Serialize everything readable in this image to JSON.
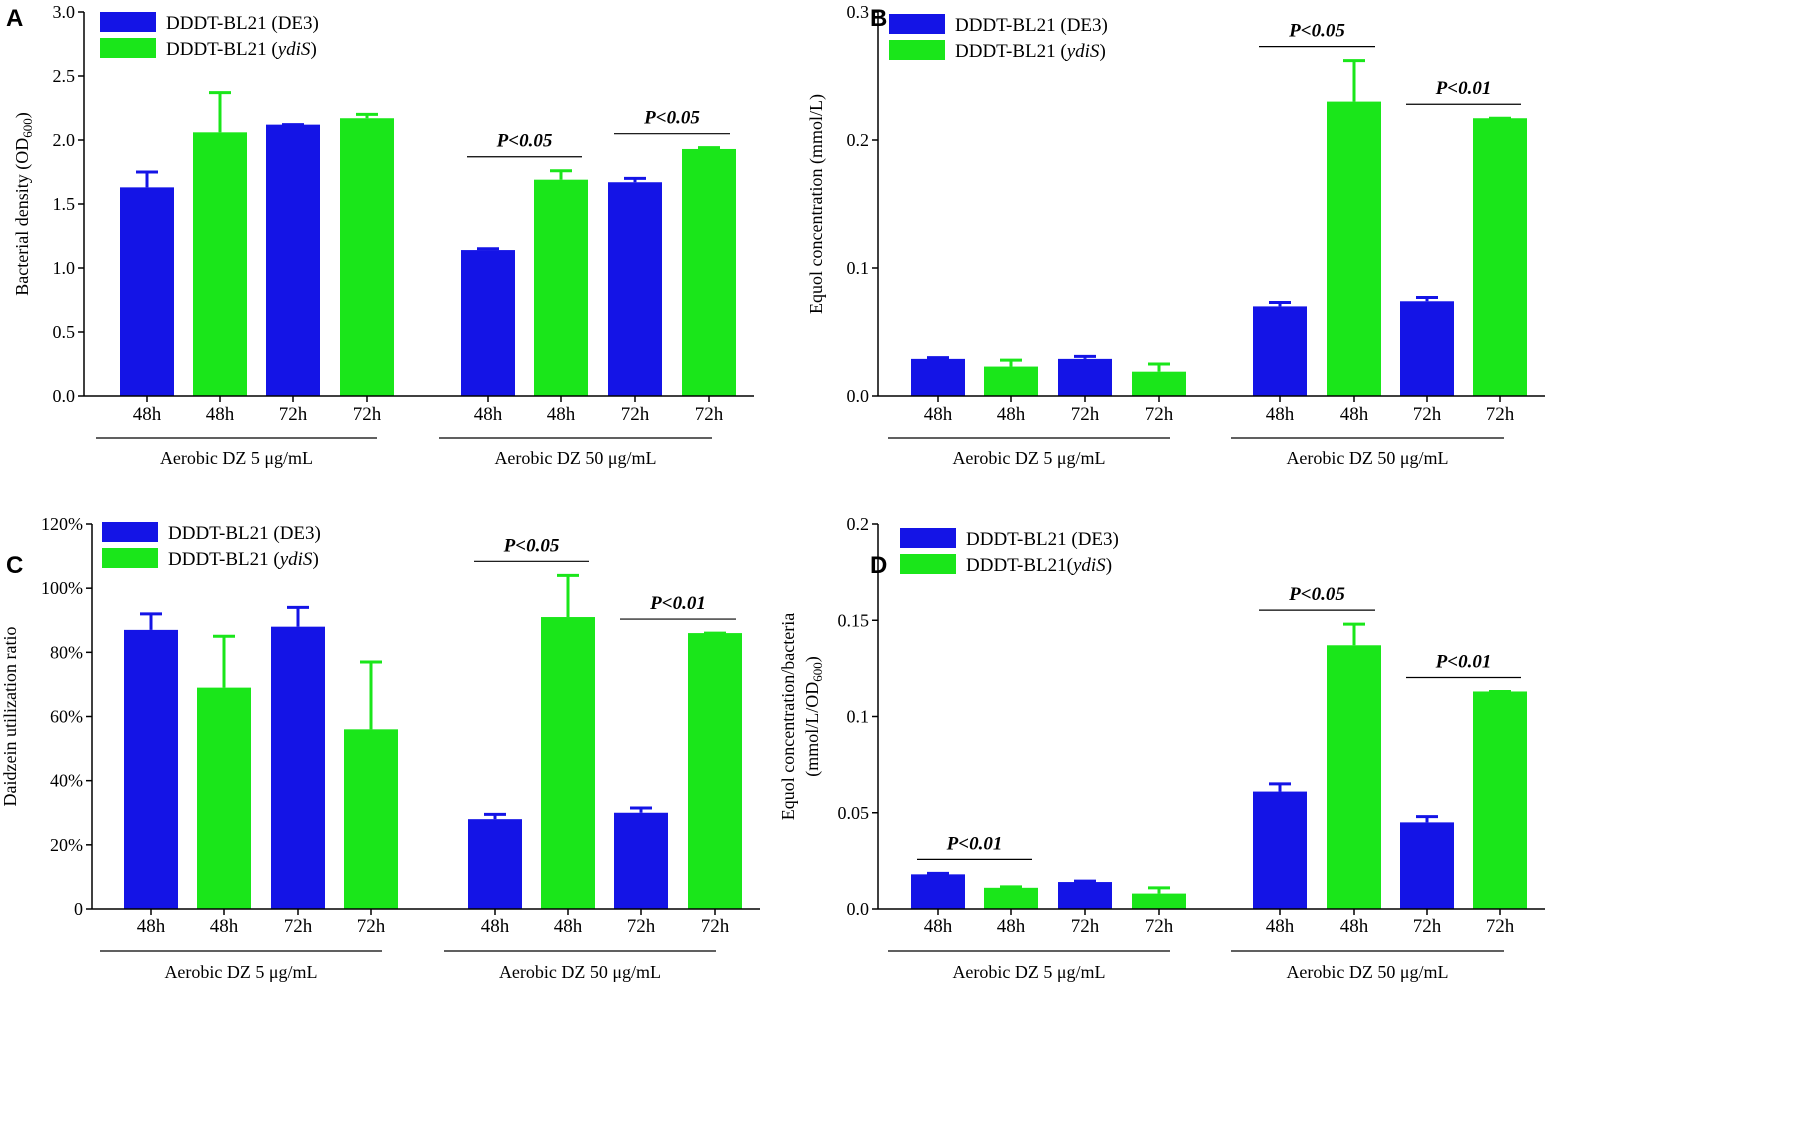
{
  "colors": {
    "series1": "#1414e6",
    "series2": "#1ae61a",
    "axis": "#000000"
  },
  "chart_data": [
    {
      "panel": "A",
      "type": "bar",
      "categories": [
        "48h",
        "48h",
        "72h",
        "72h",
        "48h",
        "48h",
        "72h",
        "72h"
      ],
      "group_labels": [
        "Aerobic DZ 5 μg/mL",
        "Aerobic DZ 50 μg/mL"
      ],
      "values": [
        1.63,
        2.06,
        2.12,
        2.17,
        1.14,
        1.69,
        1.67,
        1.93
      ],
      "errors": [
        0.12,
        0.31,
        0.0,
        0.03,
        0.01,
        0.07,
        0.03,
        0.01
      ],
      "bar_series": [
        0,
        1,
        0,
        1,
        0,
        1,
        0,
        1
      ],
      "legend": [
        {
          "label": "DDDT-BL21 (DE3)"
        },
        {
          "label": "DDDT-BL21 (",
          "italic": "ydiS",
          "suffix": ")"
        }
      ],
      "ylabel": "Bacterial density (OD",
      "ylabel_sub": "600",
      "ylabel_suffix": ")",
      "ylim": [
        0,
        3.0
      ],
      "yticks": [
        0.0,
        0.5,
        1.0,
        1.5,
        2.0,
        2.5,
        3.0
      ],
      "ytick_labels": [
        "0.0",
        "0.5",
        "1.0",
        "1.5",
        "2.0",
        "2.5",
        "3.0"
      ],
      "annotations": [
        {
          "text": "P<0.05",
          "from_bar": 4,
          "to_bar": 5
        },
        {
          "text": "P<0.05",
          "from_bar": 6,
          "to_bar": 7
        }
      ]
    },
    {
      "panel": "B",
      "type": "bar",
      "categories": [
        "48h",
        "48h",
        "72h",
        "72h",
        "48h",
        "48h",
        "72h",
        "72h"
      ],
      "group_labels": [
        "Aerobic DZ 5 μg/mL",
        "Aerobic DZ 50 μg/mL"
      ],
      "values": [
        0.029,
        0.023,
        0.029,
        0.019,
        0.07,
        0.23,
        0.074,
        0.217
      ],
      "errors": [
        0.001,
        0.005,
        0.002,
        0.006,
        0.003,
        0.032,
        0.003,
        0.0
      ],
      "bar_series": [
        0,
        1,
        0,
        1,
        0,
        1,
        0,
        1
      ],
      "legend": [
        {
          "label": "DDDT-BL21 (DE3)"
        },
        {
          "label": "DDDT-BL21 (",
          "italic": "ydiS",
          "suffix": ")"
        }
      ],
      "ylabel": "Equol concentration (mmol/L)",
      "ylim": [
        0,
        0.3
      ],
      "yticks": [
        0.0,
        0.1,
        0.2,
        0.3
      ],
      "ytick_labels": [
        "0.0",
        "0.1",
        "0.2",
        "0.3"
      ],
      "annotations": [
        {
          "text": "P<0.05",
          "from_bar": 4,
          "to_bar": 5
        },
        {
          "text": "P<0.01",
          "from_bar": 6,
          "to_bar": 7
        }
      ]
    },
    {
      "panel": "C",
      "type": "bar",
      "categories": [
        "48h",
        "48h",
        "72h",
        "72h",
        "48h",
        "48h",
        "72h",
        "72h"
      ],
      "group_labels": [
        "Aerobic DZ 5 μg/mL",
        "Aerobic DZ 50 μg/mL"
      ],
      "values": [
        87,
        69,
        88,
        56,
        28,
        91,
        30,
        86
      ],
      "errors": [
        5,
        16,
        6,
        21,
        1.5,
        13,
        1.5,
        0
      ],
      "bar_series": [
        0,
        1,
        0,
        1,
        0,
        1,
        0,
        1
      ],
      "legend": [
        {
          "label": "DDDT-BL21 (DE3)"
        },
        {
          "label": "DDDT-BL21 (",
          "italic": "ydiS",
          "suffix": ")"
        }
      ],
      "ylabel": "Daidzein utilization ratio",
      "ylim": [
        0,
        120
      ],
      "yticks": [
        0,
        20,
        40,
        60,
        80,
        100,
        120
      ],
      "ytick_labels": [
        "0",
        "20%",
        "40%",
        "60%",
        "80%",
        "100%",
        "120%"
      ],
      "annotations": [
        {
          "text": "P<0.05",
          "from_bar": 4,
          "to_bar": 5
        },
        {
          "text": "P<0.01",
          "from_bar": 6,
          "to_bar": 7
        }
      ]
    },
    {
      "panel": "D",
      "type": "bar",
      "categories": [
        "48h",
        "48h",
        "72h",
        "72h",
        "48h",
        "48h",
        "72h",
        "72h"
      ],
      "group_labels": [
        "Aerobic DZ 5 μg/mL",
        "Aerobic DZ 50 μg/mL"
      ],
      "values": [
        0.018,
        0.011,
        0.014,
        0.008,
        0.061,
        0.137,
        0.045,
        0.113
      ],
      "errors": [
        0.0005,
        0.0005,
        0.0005,
        0.003,
        0.004,
        0.011,
        0.003,
        0.0
      ],
      "bar_series": [
        0,
        1,
        0,
        1,
        0,
        1,
        0,
        1
      ],
      "legend": [
        {
          "label": "DDDT-BL21 (DE3)"
        },
        {
          "label": "DDDT-BL21(",
          "italic": "ydiS",
          "suffix": ")"
        }
      ],
      "ylabel": "Equol concentration/bacteria",
      "ylabel2": "(mmol/L/OD",
      "ylabel2_sub": "600",
      "ylabel2_suffix": ")",
      "ylim": [
        0,
        0.2
      ],
      "yticks": [
        0.0,
        0.05,
        0.1,
        0.15,
        0.2
      ],
      "ytick_labels": [
        "0.0",
        "0.05",
        "0.1",
        "0.15",
        "0.2"
      ],
      "annotations": [
        {
          "text": "P<0.01",
          "from_bar": 0,
          "to_bar": 1
        },
        {
          "text": "P<0.05",
          "from_bar": 4,
          "to_bar": 5
        },
        {
          "text": "P<0.01",
          "from_bar": 6,
          "to_bar": 7
        }
      ]
    }
  ]
}
